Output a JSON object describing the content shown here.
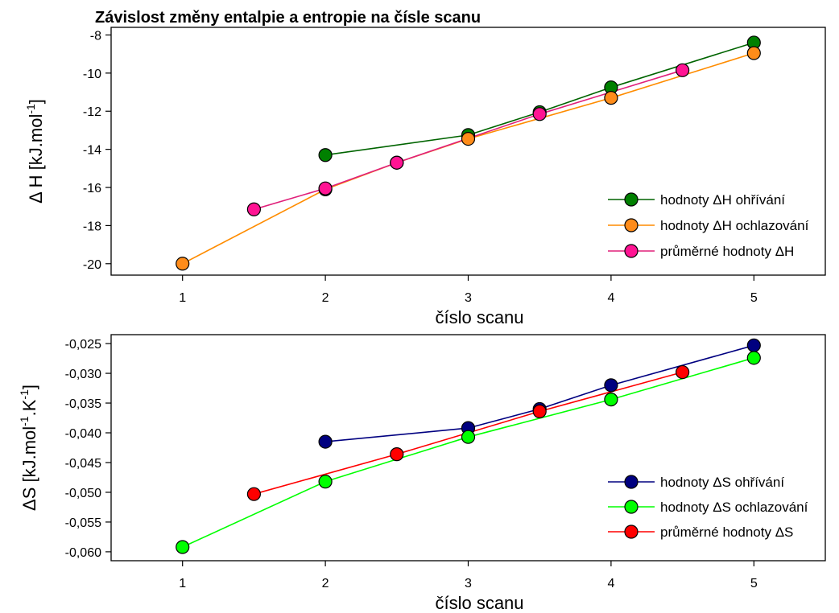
{
  "chart_data": [
    {
      "type": "line",
      "title": "Závislost změny entalpie a entropie na čísle scanu",
      "xlabel": "číslo scanu",
      "ylabel": "Δ H [kJ.mol-1]",
      "ylabel_parts": {
        "main": "Δ H [kJ.mol",
        "sup": "-1",
        "end": "]"
      },
      "xlim": [
        0.5,
        5.5
      ],
      "ylim": [
        -20.6,
        -7.6
      ],
      "x_ticks": [
        "1",
        "2",
        "3",
        "4",
        "5"
      ],
      "y_ticks": [
        "-20",
        "-18",
        "-16",
        "-14",
        "-12",
        "-10",
        "-8"
      ],
      "legend_position": "lower-right",
      "series": [
        {
          "name": "hodnoty ΔH ohřívání",
          "line_color": "#006400",
          "marker_color": "#008000",
          "x": [
            2,
            3,
            3.5,
            4,
            5
          ],
          "y": [
            -14.3,
            -13.25,
            -12.05,
            -10.75,
            -8.4
          ]
        },
        {
          "name": "hodnoty ΔH ochlazování",
          "line_color": "#ff8c00",
          "marker_color": "#ff8c1a",
          "x": [
            1,
            2,
            2.5,
            3,
            4,
            5
          ],
          "y": [
            -20.0,
            -16.1,
            -14.7,
            -13.45,
            -11.3,
            -8.95
          ]
        },
        {
          "name": "průměrné hodnoty ΔH",
          "line_color": "#e0207a",
          "marker_color": "#ff1493",
          "x": [
            1.5,
            2,
            2.5,
            3.5,
            4.5
          ],
          "y": [
            -17.15,
            -16.05,
            -14.7,
            -12.15,
            -9.85
          ]
        }
      ]
    },
    {
      "type": "line",
      "title": "",
      "xlabel": "číslo scanu",
      "ylabel": "ΔS [kJ.mol-1.K-1]",
      "ylabel_parts": {
        "main": "ΔS [kJ.mol",
        "sup": "-1",
        "mid": ".K",
        "sup2": "-1",
        "end": "]"
      },
      "xlim": [
        0.5,
        5.5
      ],
      "ylim": [
        -0.0615,
        -0.0235
      ],
      "x_ticks": [
        "1",
        "2",
        "3",
        "4",
        "5"
      ],
      "y_ticks": [
        "-0,060",
        "-0,055",
        "-0,050",
        "-0,045",
        "-0,040",
        "-0,035",
        "-0,030",
        "-0,025"
      ],
      "legend_position": "lower-right",
      "series": [
        {
          "name": "hodnoty ΔS ohřívání",
          "line_color": "#000080",
          "marker_color": "#000080",
          "x": [
            2,
            3,
            3.5,
            4,
            5
          ],
          "y": [
            -0.0415,
            -0.0392,
            -0.036,
            -0.032,
            -0.0253
          ]
        },
        {
          "name": "hodnoty ΔS ochlazování",
          "line_color": "#00ff00",
          "marker_color": "#00ff00",
          "x": [
            1,
            2,
            3,
            4,
            5
          ],
          "y": [
            -0.0592,
            -0.0482,
            -0.0407,
            -0.0344,
            -0.0274
          ]
        },
        {
          "name": "průměrné hodnoty ΔS",
          "line_color": "#ff0000",
          "marker_color": "#ff0000",
          "x": [
            1.5,
            2.5,
            3.5,
            4.5
          ],
          "y": [
            -0.0503,
            -0.0436,
            -0.0364,
            -0.0298
          ]
        }
      ]
    }
  ]
}
